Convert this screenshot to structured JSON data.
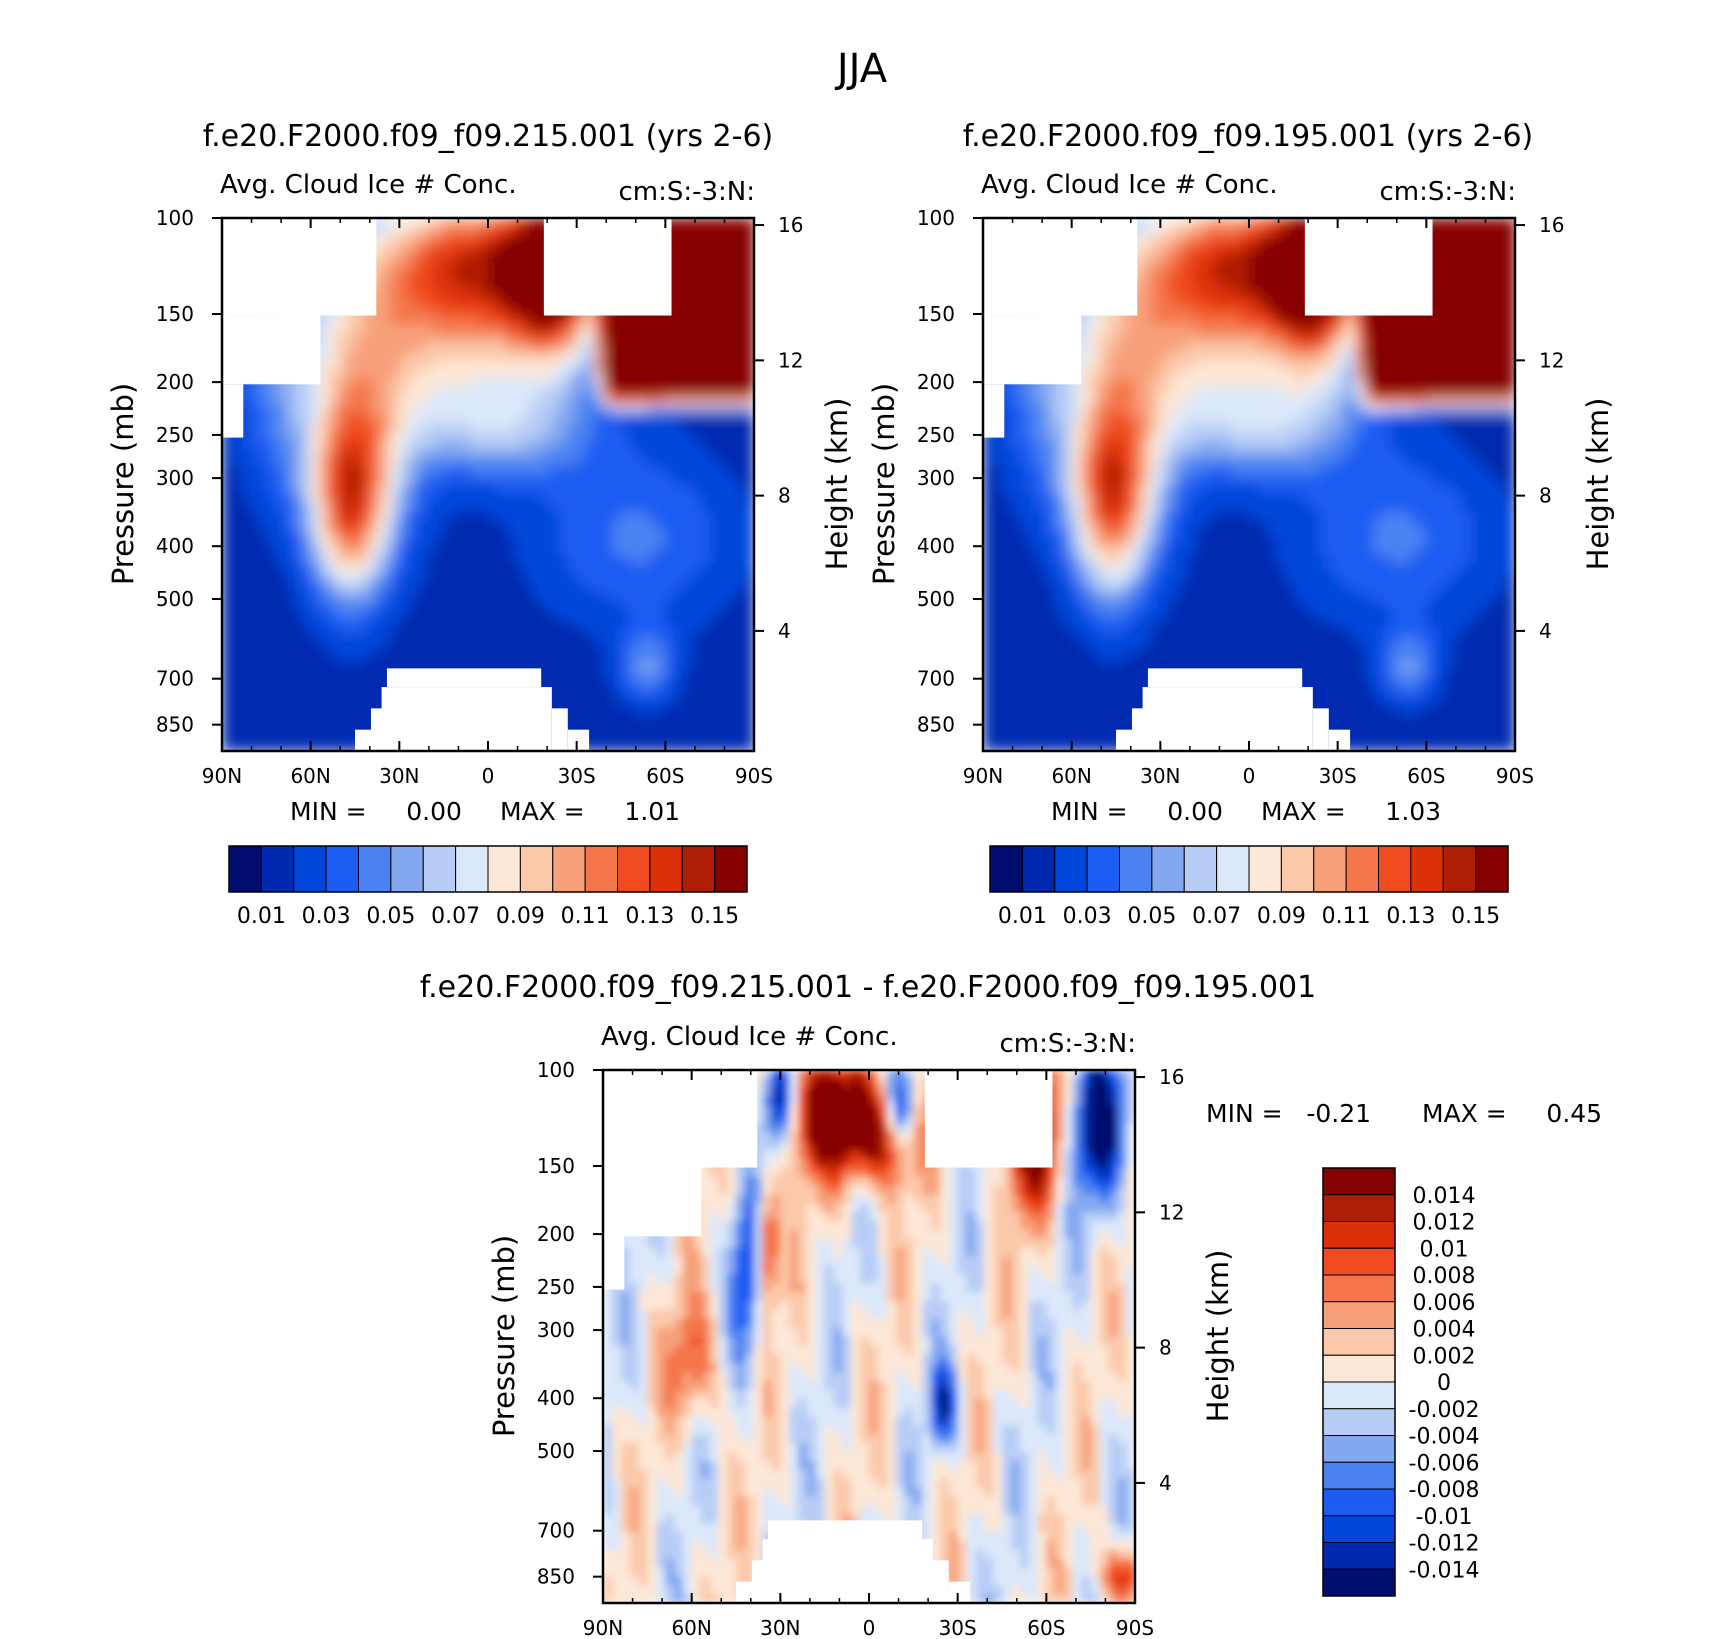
{
  "page_title": "JJA",
  "colors": {
    "filled": [
      "#000c6e",
      "#0029b0",
      "#0046da",
      "#1c5cf2",
      "#4a82f2",
      "#84a8f0",
      "#b7cdf6",
      "#dbe8fa",
      "#fde7d6",
      "#fbc9aa",
      "#f7a07a",
      "#f5764b",
      "#f04b1f",
      "#dc3008",
      "#b01d05",
      "#870000"
    ],
    "diff": [
      "#000c6e",
      "#0029b0",
      "#0046da",
      "#1c5cf2",
      "#4a82f2",
      "#84a8f0",
      "#b7cdf6",
      "#dbe8fa",
      "#fde7d6",
      "#fbc9aa",
      "#f7a07a",
      "#f5764b",
      "#f04b1f",
      "#dc3008",
      "#b01d05",
      "#870000"
    ]
  },
  "panels": [
    {
      "title": "f.e20.F2000.f09_f09.215.001 (yrs 2-6)",
      "left_label": "Avg. Cloud Ice # Conc.",
      "right_label": "cm:S:-3:N:",
      "min_text": "MIN =     0.00",
      "max_text": "MAX =     1.01",
      "colorbar_labels": [
        "0.01",
        "0.03",
        "0.05",
        "0.07",
        "0.09",
        "0.11",
        "0.13",
        "0.15"
      ]
    },
    {
      "title": "f.e20.F2000.f09_f09.195.001 (yrs 2-6)",
      "left_label": "Avg. Cloud Ice # Conc.",
      "right_label": "cm:S:-3:N:",
      "min_text": "MIN =     0.00",
      "max_text": "MAX =     1.03",
      "colorbar_labels": [
        "0.01",
        "0.03",
        "0.05",
        "0.07",
        "0.09",
        "0.11",
        "0.13",
        "0.15"
      ]
    },
    {
      "title": "f.e20.F2000.f09_f09.215.001 - f.e20.F2000.f09_f09.195.001",
      "left_label": "Avg. Cloud Ice # Conc.",
      "right_label": "cm:S:-3:N:",
      "min_text": "MIN =   -0.21",
      "max_text": "MAX =     0.45",
      "colorbar_labels": [
        "0.014",
        "0.012",
        "0.01",
        "0.008",
        "0.006",
        "0.004",
        "0.002",
        "0",
        "-0.002",
        "-0.004",
        "-0.006",
        "-0.008",
        "-0.01",
        "-0.012",
        "-0.014"
      ]
    }
  ],
  "chart_data": [
    {
      "type": "heatmap",
      "title": "f.e20.F2000.f09_f09.215.001 (yrs 2-6)",
      "subtitle": "Avg. Cloud Ice # Conc. cm:S:-3:N:",
      "xlabel": "",
      "ylabel": "Pressure (mb)",
      "y2label": "Height (km)",
      "x_ticks": [
        "90N",
        "60N",
        "30N",
        "0",
        "30S",
        "60S",
        "90S"
      ],
      "y_ticks": [
        "100",
        "150",
        "200",
        "250",
        "300",
        "400",
        "500",
        "700",
        "850"
      ],
      "y2_ticks": [
        "16",
        "12",
        "8",
        "4"
      ],
      "y_scale": "log",
      "min": 0.0,
      "max": 1.01,
      "contour_levels": [
        0.01,
        0.02,
        0.03,
        0.04,
        0.05,
        0.06,
        0.07,
        0.08,
        0.09,
        0.1,
        0.11,
        0.12,
        0.13,
        0.14,
        0.15
      ]
    },
    {
      "type": "heatmap",
      "title": "f.e20.F2000.f09_f09.195.001 (yrs 2-6)",
      "subtitle": "Avg. Cloud Ice # Conc. cm:S:-3:N:",
      "xlabel": "",
      "ylabel": "Pressure (mb)",
      "y2label": "Height (km)",
      "x_ticks": [
        "90N",
        "60N",
        "30N",
        "0",
        "30S",
        "60S",
        "90S"
      ],
      "y_ticks": [
        "100",
        "150",
        "200",
        "250",
        "300",
        "400",
        "500",
        "700",
        "850"
      ],
      "y2_ticks": [
        "16",
        "12",
        "8",
        "4"
      ],
      "y_scale": "log",
      "min": 0.0,
      "max": 1.03,
      "contour_levels": [
        0.01,
        0.02,
        0.03,
        0.04,
        0.05,
        0.06,
        0.07,
        0.08,
        0.09,
        0.1,
        0.11,
        0.12,
        0.13,
        0.14,
        0.15
      ]
    },
    {
      "type": "heatmap",
      "title": "f.e20.F2000.f09_f09.215.001 - f.e20.F2000.f09_f09.195.001",
      "subtitle": "Avg. Cloud Ice # Conc. cm:S:-3:N:",
      "xlabel": "",
      "ylabel": "Pressure (mb)",
      "y2label": "Height (km)",
      "x_ticks": [
        "90N",
        "60N",
        "30N",
        "0",
        "30S",
        "60S",
        "90S"
      ],
      "y_ticks": [
        "100",
        "150",
        "200",
        "250",
        "300",
        "400",
        "500",
        "700",
        "850"
      ],
      "y2_ticks": [
        "16",
        "12",
        "8",
        "4"
      ],
      "y_scale": "log",
      "min": -0.21,
      "max": 0.45,
      "contour_levels": [
        -0.014,
        -0.012,
        -0.01,
        -0.008,
        -0.006,
        -0.004,
        -0.002,
        0,
        0.002,
        0.004,
        0.006,
        0.008,
        0.01,
        0.012,
        0.014
      ]
    }
  ]
}
